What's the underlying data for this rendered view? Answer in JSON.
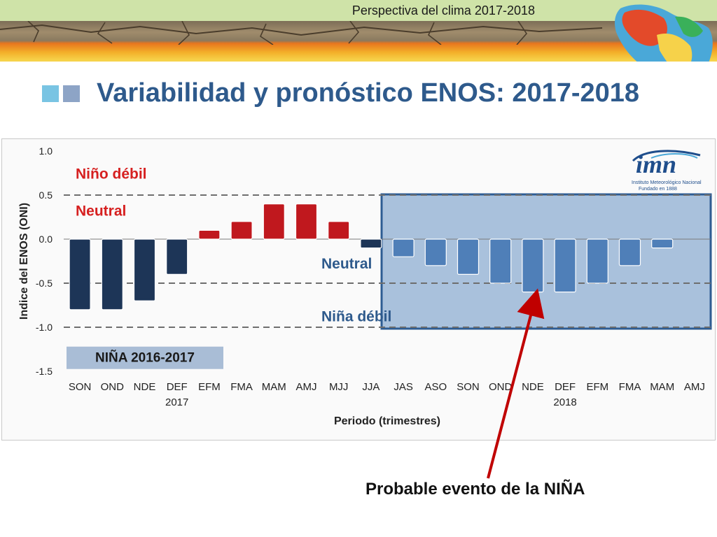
{
  "header": {
    "banner_title": "Perspectiva del clima 2017-2018",
    "slide_title": "Variabilidad y pronóstico ENOS: 2017-2018"
  },
  "logo": {
    "wordmark": "imn",
    "line1": "Instituto Meteorológico Nacional",
    "line2": "Fundado en 1888"
  },
  "caption": "Probable evento de la NIÑA",
  "colors": {
    "title": "#2e5a8c",
    "nina_bar": "#1d3557",
    "nino_bar": "#c0181e",
    "forecast_bar": "#4f7fb8",
    "forecast_box": "#a9c1dc",
    "forecast_border": "#2d5c93",
    "arrow": "#c00000"
  },
  "chart_data": {
    "type": "bar",
    "ylabel": "Indice del ENOS (ONI)",
    "xlabel": "Periodo (trimestres)",
    "ylim": [
      -1.5,
      1.0
    ],
    "yticks": [
      "1.0",
      "0.5",
      "0.0",
      "-0.5",
      "-1.0",
      "-1.5"
    ],
    "ytick_values": [
      1.0,
      0.5,
      0.0,
      -0.5,
      -1.0,
      -1.5
    ],
    "categories": [
      "SON",
      "OND",
      "NDE",
      "DEF",
      "EFM",
      "FMA",
      "MAM",
      "AMJ",
      "MJJ",
      "JJA",
      "JAS",
      "ASO",
      "SON",
      "OND",
      "NDE",
      "DEF",
      "EFM",
      "FMA",
      "MAM",
      "AMJ"
    ],
    "year_labels": [
      {
        "index": 3,
        "label": "2017"
      },
      {
        "index": 15,
        "label": "2018"
      }
    ],
    "values": [
      -0.8,
      -0.8,
      -0.7,
      -0.4,
      0.1,
      0.2,
      0.4,
      0.4,
      0.2,
      -0.1,
      -0.2,
      -0.3,
      -0.4,
      -0.5,
      -0.6,
      -0.6,
      -0.5,
      -0.3,
      -0.1,
      null
    ],
    "forecast_start_index": 10,
    "threshold_lines": [
      0.5,
      -0.5,
      -1.0
    ],
    "zone_labels": [
      {
        "text": "Niño débil",
        "color": "#d62020"
      },
      {
        "text": "Neutral",
        "color": "#d62020"
      },
      {
        "text": "Neutral",
        "color": "#2e5a8c"
      },
      {
        "text": "Niña débil",
        "color": "#2e5a8c"
      }
    ],
    "event_label": "NIÑA 2016-2017",
    "grid": false,
    "legend": "none"
  }
}
